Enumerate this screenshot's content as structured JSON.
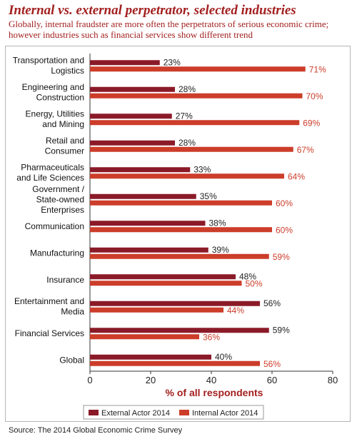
{
  "title": "Internal vs. external perpetrator, selected industries",
  "subtitle": "Globally, internal fraudster are more often the perpetrators of serious economic crime; however industries such as financial services show different trend",
  "source": "Source: The 2014 Global Economic Crime Survey",
  "colors": {
    "external": "#8b1a28",
    "internal": "#cc3d2a",
    "title": "#a32020",
    "axis": "#333333"
  },
  "chart_data": {
    "type": "bar",
    "orientation": "horizontal",
    "categories": [
      [
        "Transportation and",
        "Logistics"
      ],
      [
        "Engineering and",
        "Construction"
      ],
      [
        "Energy, Utilities",
        "and Mining"
      ],
      [
        "Retail and",
        "Consumer"
      ],
      [
        "Pharmaceuticals",
        "and Life Sciences"
      ],
      [
        "Government /",
        "State-owned",
        "Enterprises"
      ],
      [
        "Communication"
      ],
      [
        "Manufacturing"
      ],
      [
        "Insurance"
      ],
      [
        "Entertainment and",
        "Media"
      ],
      [
        "Financial Services"
      ],
      [
        "Global"
      ]
    ],
    "series": [
      {
        "name": "External Actor 2014",
        "values": [
          23,
          28,
          27,
          28,
          33,
          35,
          38,
          39,
          48,
          56,
          59,
          40
        ]
      },
      {
        "name": "Internal Actor 2014",
        "values": [
          71,
          70,
          69,
          67,
          64,
          60,
          60,
          59,
          50,
          44,
          36,
          56
        ]
      }
    ],
    "value_suffix": "%",
    "xlabel": "% of all respondents",
    "xlim": [
      0,
      80
    ],
    "xticks": [
      0,
      20,
      40,
      60,
      80
    ],
    "grid": false,
    "legend_position": "bottom"
  }
}
